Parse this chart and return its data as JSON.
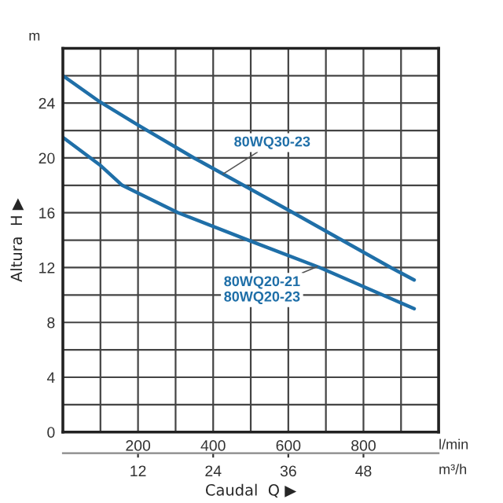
{
  "chart_data": {
    "type": "line",
    "xlabel": "Caudal  Q ▶",
    "ylabel": "Altura  H ▶",
    "x": [
      0,
      98,
      200,
      349,
      600,
      873,
      935
    ],
    "series": [
      {
        "name": "80WQ30-23",
        "color": "#1f6fa8",
        "values": [
          26,
          24.1,
          22.4,
          20.0,
          16.2,
          12.0,
          11.1
        ]
      },
      {
        "name": "80WQ20-21\n80WQ20-23",
        "color": "#1f6fa8",
        "x": [
          0,
          98,
          158,
          307,
          503,
          684,
          935
        ],
        "values": [
          21.5,
          19.5,
          18.0,
          16.0,
          13.9,
          12.0,
          9.0
        ]
      }
    ],
    "annotations": [
      "m",
      "l/min",
      "m³/h"
    ],
    "xlim": [
      0,
      1000
    ],
    "ylim": [
      0,
      28
    ],
    "xticks": [
      {
        "value": 100,
        "label": null
      },
      200,
      {
        "value": 300,
        "label": null
      },
      400,
      {
        "value": 500,
        "label": null
      },
      600,
      {
        "value": 700,
        "label": null
      },
      800,
      {
        "value": 900,
        "label": null
      }
    ],
    "yticks": [
      0,
      {
        "value": 2,
        "label": null
      },
      4,
      {
        "value": 6,
        "label": null
      },
      8,
      {
        "value": 10,
        "label": null
      },
      12,
      {
        "value": 14,
        "label": null
      },
      16,
      {
        "value": 18,
        "label": null
      },
      20,
      {
        "value": 22,
        "label": null
      },
      24,
      {
        "value": 26,
        "label": null
      }
    ],
    "x2lim": [
      0,
      60
    ],
    "x2ticks": [
      12,
      24,
      36,
      48
    ],
    "grid": true,
    "marker": "none",
    "line_style": "solid",
    "legend": false
  }
}
